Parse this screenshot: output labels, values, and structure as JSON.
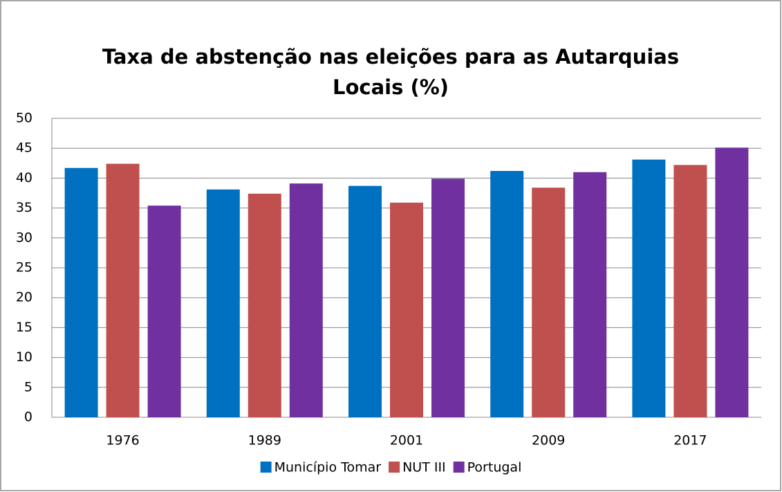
{
  "chart_data": {
    "type": "bar",
    "title": "Taxa de abstenção nas eleições para as Autarquias Locais (%)",
    "categories": [
      "1976",
      "1989",
      "2001",
      "2009",
      "2017"
    ],
    "series": [
      {
        "name": "Município Tomar",
        "color": "#0070c0",
        "values": [
          41.7,
          38.1,
          38.7,
          41.2,
          43.1
        ]
      },
      {
        "name": "NUT III",
        "color": "#c0504d",
        "values": [
          42.4,
          37.4,
          35.9,
          38.4,
          42.2
        ]
      },
      {
        "name": "Portugal",
        "color": "#7030a0",
        "values": [
          35.4,
          39.1,
          39.9,
          41.0,
          45.1
        ]
      }
    ],
    "ylim": [
      0,
      50
    ],
    "yticks": [
      0,
      5,
      10,
      15,
      20,
      25,
      30,
      35,
      40,
      45,
      50
    ],
    "grid": true,
    "legend": "bottom"
  }
}
